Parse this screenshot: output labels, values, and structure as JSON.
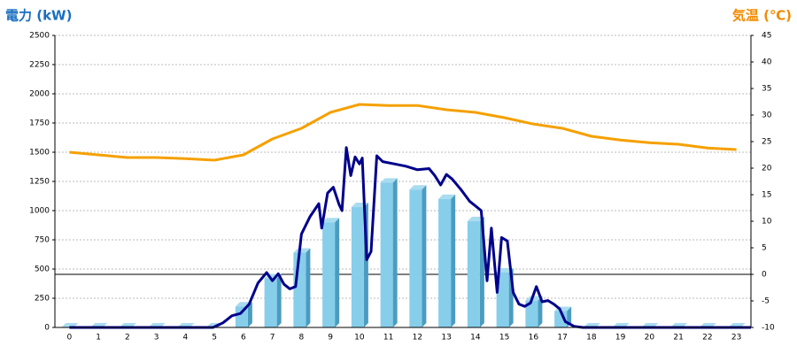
{
  "chart_data": {
    "type": "bar",
    "title_left": "電力 (kW)",
    "title_right": "気温 (℃)",
    "categories": [
      "0",
      "1",
      "2",
      "3",
      "4",
      "5",
      "6",
      "7",
      "8",
      "9",
      "10",
      "11",
      "12",
      "13",
      "14",
      "15",
      "16",
      "17",
      "18",
      "19",
      "20",
      "21",
      "22",
      "23"
    ],
    "series": [
      {
        "type": "bar",
        "color": "#87ceeb",
        "values": [
          0,
          0,
          0,
          0,
          0,
          0,
          180,
          420,
          640,
          900,
          1030,
          1240,
          1180,
          1100,
          910,
          470,
          230,
          140,
          0,
          0,
          0,
          0,
          0,
          0
        ]
      },
      {
        "type": "line",
        "color": "#00008b",
        "x": [
          0,
          1,
          2,
          3,
          4,
          4.95,
          5.3,
          5.6,
          5.9,
          6.2,
          6.5,
          6.8,
          7.0,
          7.2,
          7.4,
          7.6,
          7.8,
          8.0,
          8.3,
          8.6,
          8.7,
          8.9,
          9.1,
          9.3,
          9.4,
          9.55,
          9.7,
          9.85,
          10.0,
          10.1,
          10.25,
          10.4,
          10.6,
          10.8,
          11.2,
          11.6,
          12.0,
          12.4,
          12.6,
          12.8,
          13.0,
          13.2,
          13.5,
          13.8,
          14.0,
          14.2,
          14.4,
          14.55,
          14.75,
          14.9,
          15.1,
          15.3,
          15.5,
          15.7,
          15.9,
          16.1,
          16.3,
          16.5,
          16.7,
          16.9,
          17.1,
          17.4,
          17.7,
          18,
          19,
          20,
          21,
          22,
          23,
          23.5
        ],
        "values": [
          0,
          0,
          0,
          0,
          0,
          0,
          40,
          100,
          120,
          200,
          380,
          470,
          400,
          460,
          370,
          330,
          350,
          800,
          950,
          1060,
          850,
          1150,
          1200,
          1050,
          1000,
          1540,
          1300,
          1460,
          1400,
          1450,
          580,
          650,
          1470,
          1420,
          1400,
          1380,
          1350,
          1360,
          1300,
          1220,
          1310,
          1270,
          1180,
          1080,
          1040,
          1000,
          400,
          850,
          300,
          770,
          740,
          300,
          200,
          180,
          210,
          350,
          220,
          230,
          200,
          160,
          50,
          10,
          0,
          0,
          0,
          0,
          0,
          0,
          0,
          0
        ]
      },
      {
        "type": "line",
        "axis": "y2",
        "color": "#f5a000",
        "x": [
          0,
          1,
          2,
          3,
          4,
          5,
          6,
          7,
          8,
          9,
          10,
          11,
          12,
          13,
          14,
          15,
          16,
          17,
          18,
          19,
          20,
          21,
          22,
          23
        ],
        "values": [
          23,
          22.5,
          22,
          22,
          21.8,
          21.5,
          22.5,
          25.5,
          27.5,
          30.5,
          32,
          31.8,
          31.8,
          31,
          30.5,
          29.5,
          28.3,
          27.5,
          26,
          25.3,
          24.8,
          24.5,
          23.8,
          23.5
        ]
      }
    ],
    "xlim": [
      -0.5,
      23.5
    ],
    "ylim": [
      0,
      2500
    ],
    "yticks": [
      0,
      250,
      500,
      750,
      1000,
      1250,
      1500,
      1750,
      2000,
      2250,
      2500
    ],
    "y2lim": [
      -10,
      45
    ],
    "y2ticks": [
      -10,
      -5,
      0,
      5,
      10,
      15,
      20,
      25,
      30,
      35,
      40,
      45
    ],
    "grid": true,
    "y2_zero_line": true,
    "title_left_color": "#1a6fc0",
    "title_right_color": "#f08a00"
  }
}
